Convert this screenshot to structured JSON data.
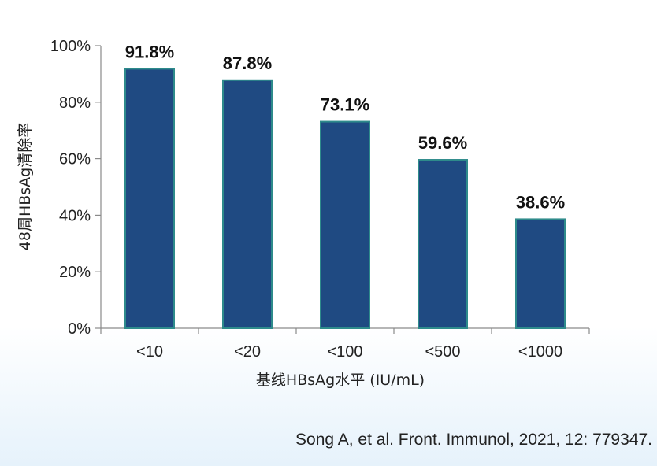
{
  "chart_data": {
    "type": "bar",
    "categories": [
      "<10",
      "<20",
      "<100",
      "<500",
      "<1000"
    ],
    "values": [
      91.8,
      87.8,
      73.1,
      59.6,
      38.6
    ],
    "data_labels": [
      "91.8%",
      "87.8%",
      "73.1%",
      "59.6%",
      "38.6%"
    ],
    "xlabel": "基线HBsAg水平 (IU/mL)",
    "ylabel": "48周HBsAg清除率",
    "ylim": [
      0,
      100
    ],
    "yticks": [
      0,
      20,
      40,
      60,
      80,
      100
    ],
    "ytick_labels": [
      "0%",
      "20%",
      "40%",
      "60%",
      "80%",
      "100%"
    ],
    "grid": false,
    "bar_color": "#1f4a82",
    "bar_edge_color": "#2e8b8b"
  },
  "citation": "Song A, et al. Front. Immunol, 2021, 12: 779347."
}
